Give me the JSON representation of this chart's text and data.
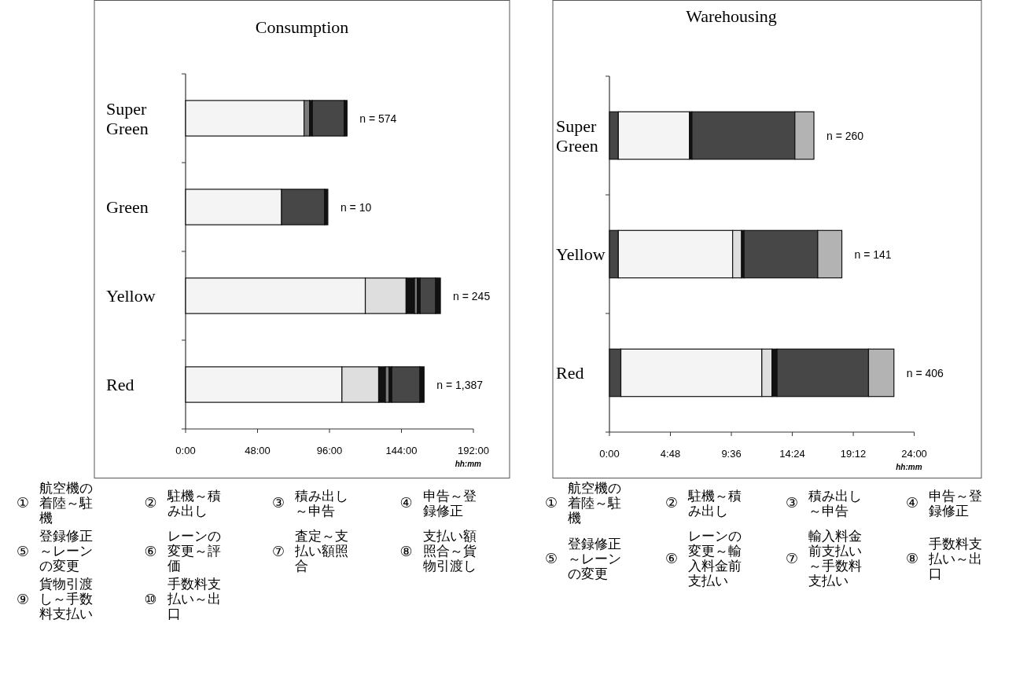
{
  "chart_data": [
    {
      "type": "bar",
      "orientation": "horizontal",
      "stacked": true,
      "title": "Consumption",
      "xlabel": "hh:mm",
      "categories": [
        "Super Green",
        "Green",
        "Yellow",
        "Red"
      ],
      "series": [
        {
          "color": "#f4f4f4",
          "values": [
            79.0,
            64.0,
            119.9,
            104.3
          ]
        },
        {
          "color": "#dedede",
          "values": [
            null,
            null,
            27.2,
            24.5
          ]
        },
        {
          "color": "#111111",
          "values": [
            null,
            null,
            5.6,
            4.5
          ]
        },
        {
          "color": "#7a7a7a",
          "values": [
            3.7,
            null,
            1.9,
            2.4
          ]
        },
        {
          "color": "#111111",
          "values": [
            1.9,
            null,
            1.9,
            1.9
          ]
        },
        {
          "color": "#474747",
          "values": [
            21.2,
            28.7,
            10.3,
            18.7
          ]
        },
        {
          "color": "#111111",
          "values": [
            1.9,
            2.2,
            3.2,
            2.8
          ]
        }
      ],
      "xlim": [
        0,
        192
      ],
      "xticks": [
        {
          "value": 0,
          "label": "0:00"
        },
        {
          "value": 48,
          "label": "48:00"
        },
        {
          "value": 96,
          "label": "96:00"
        },
        {
          "value": 144,
          "label": "144:00"
        },
        {
          "value": 192,
          "label": "192:00"
        }
      ],
      "annotations": [
        "n = 574",
        "n = 10",
        "n = 245",
        "n = 1,387",
        "① 航空機の着陸～駐機",
        "② 駐機～積み出し",
        "③ 積み出し～申告",
        "④ 申告～登録修正",
        "⑤ 登録修正～レーンの変更",
        "⑥ レーンの変更～評価",
        "⑦ 査定～支払い額照合",
        "⑧ 支払い額照合～貨物引渡し",
        "⑨ 貨物引渡し～手数料支払い",
        "⑩ 手数料支払い～出口"
      ]
    },
    {
      "type": "bar",
      "orientation": "horizontal",
      "stacked": true,
      "title": "Warehousing",
      "xlabel": "hh:mm",
      "categories": [
        "Super Green",
        "Yellow",
        "Red"
      ],
      "series": [
        {
          "color": "#474747",
          "values": [
            0.7,
            0.7,
            0.9
          ]
        },
        {
          "color": "#f4f4f4",
          "values": [
            5.6,
            9.0,
            11.1
          ]
        },
        {
          "color": "#dedede",
          "values": [
            null,
            0.7,
            0.8
          ]
        },
        {
          "color": "#111111",
          "values": [
            0.2,
            0.2,
            0.4
          ]
        },
        {
          "color": "#474747",
          "values": [
            8.1,
            5.8,
            7.2
          ]
        },
        {
          "color": "#b3b3b3",
          "values": [
            1.5,
            1.9,
            2.0
          ]
        }
      ],
      "xlim": [
        0,
        24
      ],
      "xticks": [
        {
          "value": 0,
          "label": "0:00"
        },
        {
          "value": 4.8,
          "label": "4:48"
        },
        {
          "value": 9.6,
          "label": "9:36"
        },
        {
          "value": 14.4,
          "label": "14:24"
        },
        {
          "value": 19.2,
          "label": "19:12"
        },
        {
          "value": 24,
          "label": "24:00"
        }
      ],
      "annotations": [
        "n = 260",
        "n = 141",
        "n = 406",
        "① 航空機の着陸～駐機",
        "② 駐機～積み出し",
        "③ 積み出し～申告",
        "④ 申告～登録修正",
        "⑤ 登録修正～レーンの変更",
        "⑥ レーンの変更～輸入料金前支払い",
        "⑦ 輸入料金前支払い～手数料支払い",
        "⑧ 手数料支払い～出口"
      ]
    }
  ]
}
